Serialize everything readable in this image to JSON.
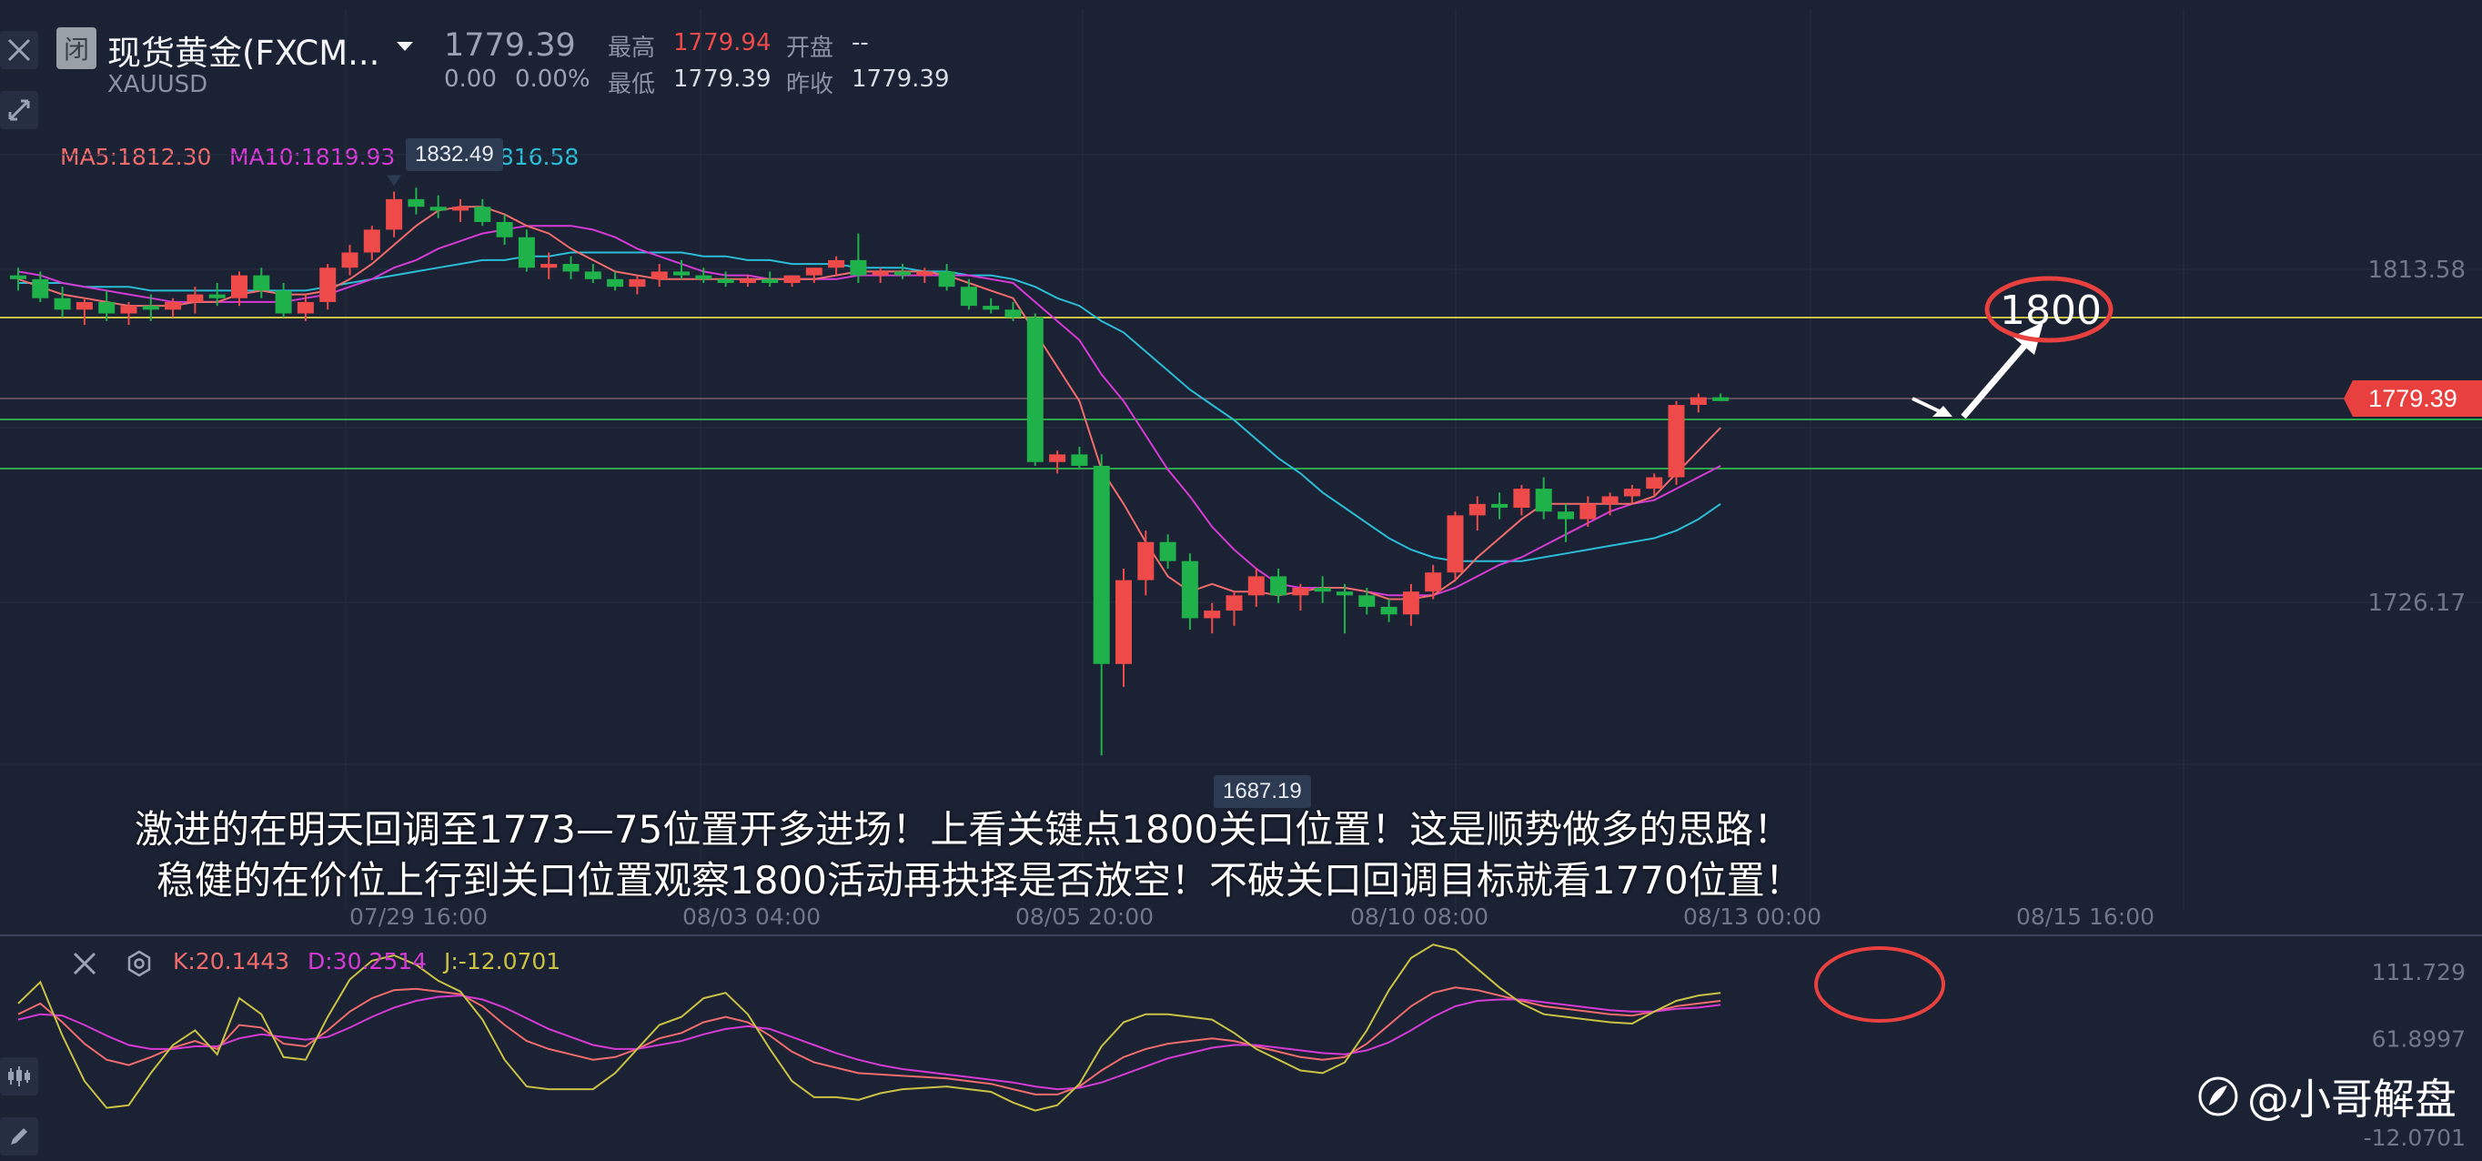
{
  "header": {
    "badge": "闭",
    "name": "现货黄金(FXCM...",
    "symbol": "XAUUSD",
    "price": "1779.39",
    "change": "0.00",
    "change_pct": "0.00%",
    "high_label": "最高",
    "high_value": "1779.94",
    "open_label": "开盘",
    "open_value": "--",
    "low_label": "最低",
    "low_value": "1779.39",
    "prev_label": "昨收",
    "prev_value": "1779.39"
  },
  "ma_legend": {
    "ma5": "MA5:1812.30",
    "ma10": "MA10:1819.93",
    "ma20": "MA20:1816.58"
  },
  "kdj_legend": {
    "k": "K:20.1443",
    "d": "D:30.2514",
    "j": "J:-12.0701"
  },
  "annotations": {
    "max_label": "1832.49",
    "min_label": "1687.19",
    "target": "1800",
    "last_price": "1779.39"
  },
  "caption": {
    "line1": "激进的在明天回调至1773—75位置开多进场！上看关键点1800关口位置！这是顺势做多的思路！",
    "line2": "稳健的在价位上行到关口位置观察1800活动再抉择是否放空！不破关口回调目标就看1770位置！"
  },
  "watermark": "@小哥解盘",
  "colors": {
    "bg": "#1b2234",
    "up": "#ef4a4a",
    "down": "#1fb24a",
    "ma5": "#f06c6c",
    "ma10": "#d53ad5",
    "ma20": "#2bbcd6",
    "j_line": "#c9c244",
    "annotation": "#e8403e"
  },
  "chart_data": [
    {
      "type": "candlestick",
      "title": "",
      "y_ticks": [
        "1813.58",
        "1726.17"
      ],
      "x_ticks": [
        "07/29 16:00",
        "08/03 04:00",
        "08/05 20:00",
        "08/10 08:00",
        "08/13 00:00",
        "08/15 16:00"
      ],
      "candles": [
        [
          1812,
          1814,
          1808,
          1811
        ],
        [
          1811,
          1813,
          1805,
          1806
        ],
        [
          1806,
          1809,
          1801,
          1803
        ],
        [
          1803,
          1806,
          1799,
          1805
        ],
        [
          1805,
          1808,
          1800,
          1802
        ],
        [
          1802,
          1805,
          1799,
          1804
        ],
        [
          1804,
          1807,
          1800,
          1803
        ],
        [
          1803,
          1806,
          1801,
          1805
        ],
        [
          1805,
          1809,
          1802,
          1807
        ],
        [
          1807,
          1810,
          1804,
          1806
        ],
        [
          1806,
          1813,
          1804,
          1812
        ],
        [
          1812,
          1814,
          1806,
          1808
        ],
        [
          1808,
          1810,
          1801,
          1802
        ],
        [
          1802,
          1807,
          1800,
          1805
        ],
        [
          1805,
          1815,
          1803,
          1814
        ],
        [
          1814,
          1820,
          1812,
          1818
        ],
        [
          1818,
          1825,
          1816,
          1824
        ],
        [
          1824,
          1834,
          1822,
          1832
        ],
        [
          1832,
          1835,
          1828,
          1830
        ],
        [
          1830,
          1833,
          1827,
          1829
        ],
        [
          1829,
          1832,
          1826,
          1830
        ],
        [
          1830,
          1832,
          1825,
          1826
        ],
        [
          1826,
          1828,
          1820,
          1822
        ],
        [
          1822,
          1824,
          1813,
          1814
        ],
        [
          1814,
          1818,
          1811,
          1815
        ],
        [
          1815,
          1817,
          1811,
          1813
        ],
        [
          1813,
          1815,
          1810,
          1811
        ],
        [
          1811,
          1813,
          1808,
          1809
        ],
        [
          1809,
          1812,
          1807,
          1811
        ],
        [
          1811,
          1815,
          1809,
          1813
        ],
        [
          1813,
          1816,
          1811,
          1812
        ],
        [
          1812,
          1814,
          1810,
          1811
        ],
        [
          1811,
          1813,
          1809,
          1810
        ],
        [
          1810,
          1812,
          1809,
          1811
        ],
        [
          1811,
          1813,
          1809,
          1810
        ],
        [
          1810,
          1812,
          1809,
          1812
        ],
        [
          1812,
          1814,
          1810,
          1814
        ],
        [
          1814,
          1817,
          1812,
          1816
        ],
        [
          1816,
          1823,
          1810,
          1812
        ],
        [
          1812,
          1814,
          1810,
          1813
        ],
        [
          1813,
          1815,
          1811,
          1812
        ],
        [
          1812,
          1814,
          1810,
          1813
        ],
        [
          1813,
          1815,
          1808,
          1809
        ],
        [
          1809,
          1811,
          1803,
          1804
        ],
        [
          1804,
          1806,
          1802,
          1803
        ],
        [
          1803,
          1805,
          1800,
          1801
        ],
        [
          1801,
          1802,
          1762,
          1763
        ],
        [
          1763,
          1766,
          1760,
          1765
        ],
        [
          1765,
          1767,
          1761,
          1762
        ],
        [
          1762,
          1765,
          1686,
          1710
        ],
        [
          1710,
          1735,
          1704,
          1732
        ],
        [
          1732,
          1745,
          1728,
          1742
        ],
        [
          1742,
          1744,
          1735,
          1737
        ],
        [
          1737,
          1739,
          1719,
          1722
        ],
        [
          1722,
          1726,
          1718,
          1724
        ],
        [
          1724,
          1729,
          1720,
          1728
        ],
        [
          1728,
          1735,
          1725,
          1733
        ],
        [
          1733,
          1735,
          1726,
          1728
        ],
        [
          1728,
          1731,
          1724,
          1730
        ],
        [
          1730,
          1733,
          1726,
          1729
        ],
        [
          1729,
          1731,
          1718,
          1728
        ],
        [
          1728,
          1730,
          1723,
          1725
        ],
        [
          1725,
          1727,
          1721,
          1723
        ],
        [
          1723,
          1731,
          1720,
          1729
        ],
        [
          1729,
          1736,
          1727,
          1734
        ],
        [
          1734,
          1750,
          1732,
          1749
        ],
        [
          1749,
          1754,
          1745,
          1752
        ],
        [
          1752,
          1755,
          1748,
          1751
        ],
        [
          1751,
          1757,
          1749,
          1756
        ],
        [
          1756,
          1759,
          1748,
          1750
        ],
        [
          1750,
          1752,
          1742,
          1748
        ],
        [
          1748,
          1754,
          1746,
          1752
        ],
        [
          1752,
          1755,
          1749,
          1754
        ],
        [
          1754,
          1757,
          1752,
          1756
        ],
        [
          1756,
          1760,
          1754,
          1759
        ],
        [
          1759,
          1779,
          1757,
          1778
        ],
        [
          1778,
          1781,
          1776,
          1780
        ],
        [
          1780,
          1781,
          1779,
          1779
        ]
      ],
      "ma5": [
        1811,
        1809,
        1807,
        1806,
        1805,
        1804,
        1804,
        1804,
        1805,
        1805,
        1807,
        1808,
        1807,
        1807,
        1808,
        1811,
        1815,
        1820,
        1825,
        1829,
        1830,
        1830,
        1828,
        1825,
        1823,
        1819,
        1816,
        1813,
        1812,
        1811,
        1811,
        1811,
        1811,
        1811,
        1811,
        1811,
        1811,
        1812,
        1813,
        1813,
        1813,
        1813,
        1812,
        1810,
        1808,
        1806,
        1797,
        1788,
        1779,
        1761,
        1752,
        1742,
        1733,
        1729,
        1731,
        1729,
        1729,
        1728,
        1729,
        1730,
        1730,
        1729,
        1727,
        1727,
        1728,
        1732,
        1738,
        1743,
        1748,
        1752,
        1752,
        1752,
        1752,
        1752,
        1754,
        1760,
        1766,
        1772
      ],
      "ma10": [
        1813,
        1812,
        1810,
        1809,
        1808,
        1807,
        1806,
        1805,
        1805,
        1805,
        1805,
        1805,
        1805,
        1806,
        1807,
        1809,
        1811,
        1814,
        1816,
        1819,
        1821,
        1823,
        1824,
        1825,
        1825,
        1825,
        1824,
        1822,
        1819,
        1817,
        1815,
        1813,
        1812,
        1812,
        1811,
        1811,
        1811,
        1811,
        1812,
        1812,
        1812,
        1812,
        1812,
        1812,
        1811,
        1810,
        1805,
        1800,
        1795,
        1786,
        1779,
        1770,
        1761,
        1754,
        1746,
        1740,
        1735,
        1731,
        1730,
        1730,
        1730,
        1729,
        1728,
        1728,
        1728,
        1730,
        1733,
        1736,
        1738,
        1741,
        1744,
        1747,
        1750,
        1752,
        1753,
        1756,
        1759,
        1762
      ],
      "ma20": [
        1810,
        1810,
        1810,
        1809,
        1809,
        1809,
        1808,
        1808,
        1808,
        1808,
        1808,
        1808,
        1808,
        1808,
        1809,
        1810,
        1811,
        1812,
        1813,
        1814,
        1815,
        1816,
        1816,
        1817,
        1817,
        1818,
        1818,
        1818,
        1818,
        1818,
        1818,
        1817,
        1817,
        1816,
        1816,
        1815,
        1815,
        1815,
        1814,
        1814,
        1814,
        1813,
        1813,
        1812,
        1812,
        1811,
        1809,
        1806,
        1804,
        1800,
        1797,
        1792,
        1787,
        1782,
        1778,
        1774,
        1769,
        1764,
        1760,
        1755,
        1751,
        1747,
        1743,
        1740,
        1738,
        1737,
        1737,
        1737,
        1737,
        1738,
        1739,
        1740,
        1741,
        1742,
        1743,
        1745,
        1748,
        1752
      ]
    },
    {
      "type": "line",
      "title": "",
      "y_ticks": [
        "111.729",
        "61.8997",
        "-12.0701"
      ],
      "series": [
        {
          "name": "K",
          "values": [
            80,
            88,
            74,
            58,
            46,
            42,
            48,
            55,
            60,
            54,
            72,
            70,
            58,
            56,
            68,
            82,
            92,
            98,
            99,
            97,
            95,
            86,
            72,
            60,
            54,
            50,
            46,
            48,
            54,
            62,
            66,
            74,
            78,
            74,
            64,
            52,
            44,
            40,
            36,
            35,
            34,
            33,
            32,
            30,
            28,
            24,
            20,
            20,
            26,
            38,
            48,
            54,
            58,
            60,
            62,
            60,
            56,
            52,
            48,
            46,
            48,
            58,
            72,
            86,
            96,
            100,
            98,
            94,
            90,
            86,
            84,
            82,
            80,
            79,
            82,
            86,
            88,
            90
          ]
        },
        {
          "name": "D",
          "values": [
            76,
            80,
            79,
            72,
            64,
            57,
            54,
            54,
            56,
            56,
            62,
            65,
            63,
            61,
            63,
            70,
            78,
            85,
            90,
            93,
            94,
            91,
            85,
            77,
            69,
            63,
            57,
            54,
            54,
            57,
            60,
            65,
            69,
            71,
            69,
            63,
            57,
            51,
            46,
            42,
            39,
            37,
            35,
            33,
            31,
            29,
            26,
            24,
            25,
            29,
            35,
            41,
            47,
            51,
            55,
            57,
            57,
            55,
            53,
            51,
            50,
            53,
            59,
            68,
            78,
            86,
            90,
            91,
            91,
            89,
            87,
            85,
            83,
            82,
            82,
            84,
            85,
            87
          ]
        },
        {
          "name": "J",
          "values": [
            88,
            104,
            64,
            30,
            10,
            12,
            36,
            57,
            68,
            50,
            92,
            80,
            48,
            46,
            78,
            106,
            120,
            124,
            117,
            105,
            97,
            76,
            46,
            26,
            24,
            24,
            24,
            36,
            54,
            72,
            78,
            92,
            96,
            80,
            54,
            30,
            18,
            18,
            16,
            21,
            24,
            25,
            26,
            24,
            22,
            14,
            8,
            12,
            28,
            56,
            74,
            80,
            80,
            78,
            76,
            66,
            54,
            46,
            38,
            36,
            44,
            68,
            98,
            122,
            132,
            128,
            114,
            100,
            88,
            80,
            78,
            76,
            74,
            73,
            82,
            90,
            94,
            96
          ]
        }
      ]
    }
  ]
}
